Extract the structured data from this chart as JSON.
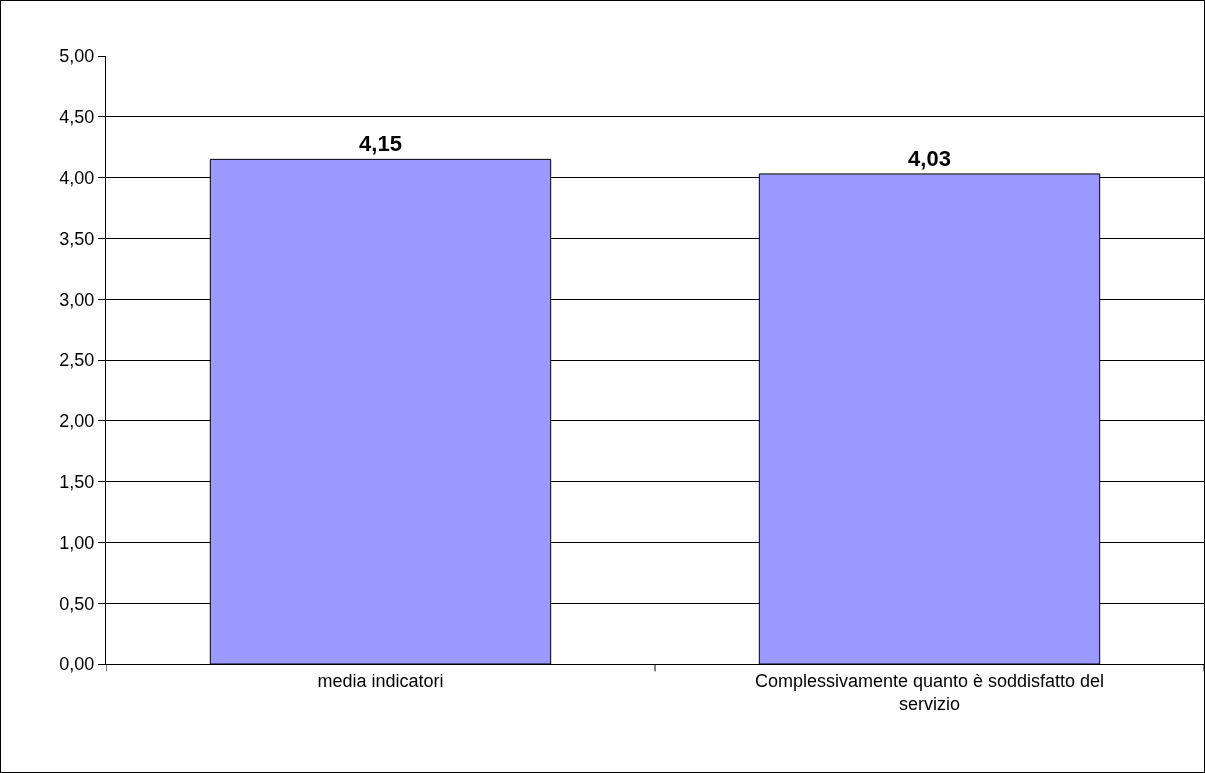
{
  "chart_data": {
    "type": "bar",
    "categories": [
      "media indicatori",
      "Complessivamente quanto è soddisfatto del servizio"
    ],
    "values": [
      4.15,
      4.03
    ],
    "value_labels": [
      "4,15",
      "4,03"
    ],
    "color": "#9999ff",
    "ylim": [
      0,
      5
    ],
    "yticks": [
      {
        "value": 0,
        "label": "0,00"
      },
      {
        "value": 0.5,
        "label": "0,50"
      },
      {
        "value": 1,
        "label": "1,00"
      },
      {
        "value": 1.5,
        "label": "1,50"
      },
      {
        "value": 2,
        "label": "2,00"
      },
      {
        "value": 2.5,
        "label": "2,50"
      },
      {
        "value": 3,
        "label": "3,00"
      },
      {
        "value": 3.5,
        "label": "3,50"
      },
      {
        "value": 4,
        "label": "4,00"
      },
      {
        "value": 4.5,
        "label": "4,50"
      },
      {
        "value": 5,
        "label": "5,00"
      }
    ],
    "grid": "y"
  }
}
